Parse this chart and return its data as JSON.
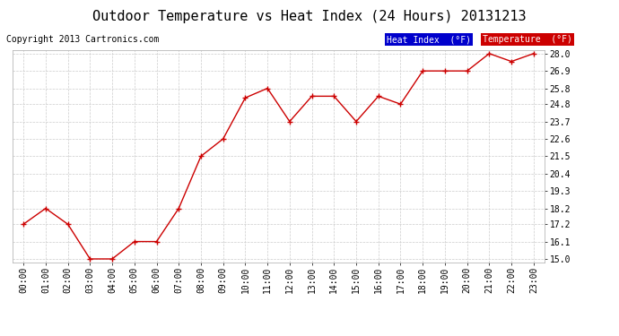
{
  "title": "Outdoor Temperature vs Heat Index (24 Hours) 20131213",
  "copyright": "Copyright 2013 Cartronics.com",
  "x_labels": [
    "00:00",
    "01:00",
    "02:00",
    "03:00",
    "04:00",
    "05:00",
    "06:00",
    "07:00",
    "08:00",
    "09:00",
    "10:00",
    "11:00",
    "12:00",
    "13:00",
    "14:00",
    "15:00",
    "16:00",
    "17:00",
    "18:00",
    "19:00",
    "20:00",
    "21:00",
    "22:00",
    "23:00"
  ],
  "temperature_values": [
    17.2,
    18.2,
    17.2,
    15.0,
    15.0,
    16.1,
    16.1,
    18.2,
    21.5,
    22.6,
    25.2,
    25.8,
    23.7,
    25.3,
    25.3,
    23.7,
    25.3,
    24.8,
    26.9,
    26.9,
    26.9,
    28.0,
    27.5,
    28.0
  ],
  "ylim_min": 15.0,
  "ylim_max": 28.0,
  "y_ticks": [
    15.0,
    16.1,
    17.2,
    18.2,
    19.3,
    20.4,
    21.5,
    22.6,
    23.7,
    24.8,
    25.8,
    26.9,
    28.0
  ],
  "line_color": "#cc0000",
  "bg_color": "#ffffff",
  "grid_color": "#cccccc",
  "title_fontsize": 11,
  "copyright_fontsize": 7,
  "axis_fontsize": 7,
  "legend_heat_index_bg": "#0000cc",
  "legend_temp_bg": "#cc0000",
  "legend_text_color": "#ffffff",
  "legend_heat_label": "Heat Index  (°F)",
  "legend_temp_label": "Temperature  (°F)"
}
